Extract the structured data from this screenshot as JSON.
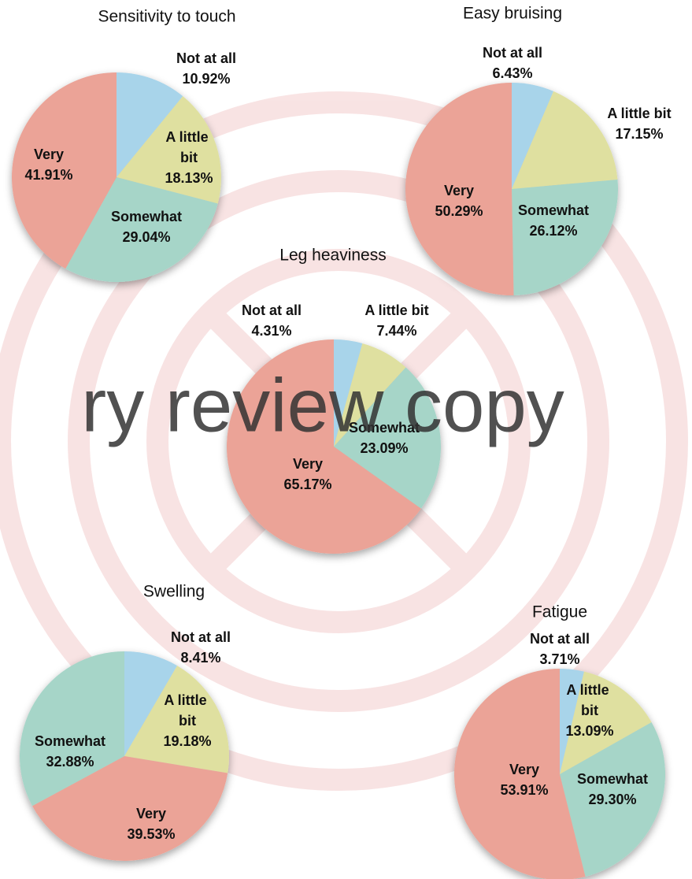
{
  "watermark": "ry review copy",
  "chart_data": [
    {
      "type": "pie",
      "title": "Sensitivity to touch",
      "categories": [
        "Not at all",
        "A little bit",
        "Somewhat",
        "Very"
      ],
      "values": [
        10.92,
        18.13,
        29.04,
        41.91
      ],
      "value_labels": [
        "10.92%",
        "18.13%",
        "29.04%",
        "41.91%"
      ],
      "colors": [
        "#a8d4ea",
        "#dfe0a0",
        "#a6d5c8",
        "#eba397"
      ]
    },
    {
      "type": "pie",
      "title": "Easy bruising",
      "categories": [
        "Not at all",
        "A little bit",
        "Somewhat",
        "Very"
      ],
      "values": [
        6.43,
        17.15,
        26.12,
        50.29
      ],
      "value_labels": [
        "6.43%",
        "17.15%",
        "26.12%",
        "50.29%"
      ],
      "colors": [
        "#a8d4ea",
        "#dfe0a0",
        "#a6d5c8",
        "#eba397"
      ]
    },
    {
      "type": "pie",
      "title": "Leg heaviness",
      "categories": [
        "Not at all",
        "A little bit",
        "Somewhat",
        "Very"
      ],
      "values": [
        4.31,
        7.44,
        23.09,
        65.17
      ],
      "value_labels": [
        "4.31%",
        "7.44%",
        "23.09%",
        "65.17%"
      ],
      "colors": [
        "#a8d4ea",
        "#dfe0a0",
        "#a6d5c8",
        "#eba397"
      ]
    },
    {
      "type": "pie",
      "title": "Swelling",
      "categories": [
        "Not at all",
        "A little bit",
        "Very",
        "Somewhat"
      ],
      "values": [
        8.41,
        19.18,
        39.53,
        32.88
      ],
      "value_labels": [
        "8.41%",
        "19.18%",
        "39.53%",
        "32.88%"
      ],
      "colors": [
        "#a8d4ea",
        "#dfe0a0",
        "#eba397",
        "#a6d5c8"
      ]
    },
    {
      "type": "pie",
      "title": "Fatigue",
      "categories": [
        "Not at all",
        "A little bit",
        "Somewhat",
        "Very"
      ],
      "values": [
        3.71,
        13.09,
        29.3,
        53.91
      ],
      "value_labels": [
        "3.71%",
        "13.09%",
        "29.30%",
        "53.91%"
      ],
      "colors": [
        "#a8d4ea",
        "#dfe0a0",
        "#a6d5c8",
        "#eba397"
      ]
    }
  ]
}
